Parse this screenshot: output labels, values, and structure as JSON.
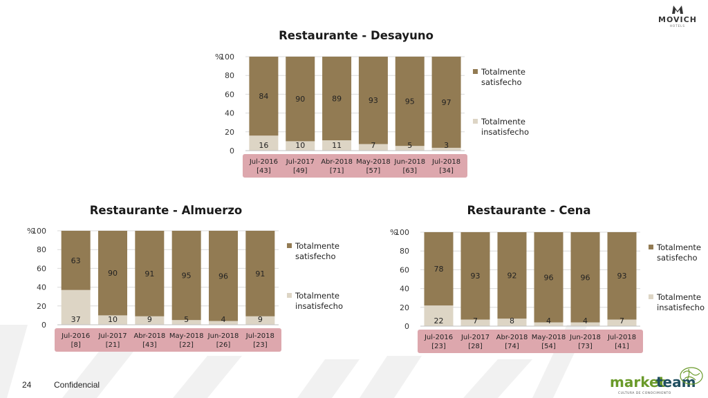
{
  "brand": {
    "name": "MOVICH",
    "sub": "HOTELS"
  },
  "footer": {
    "page": "24",
    "label": "Confidencial"
  },
  "partner": {
    "name_a": "market",
    "name_b": "team",
    "tagline": "CULTURA DE CONOCIMIENTO"
  },
  "colors": {
    "satisfied": "#927b53",
    "unsatisfied": "#ddd5c5",
    "xlabel_bg": "#dda7ad",
    "grid": "#d9d9d9"
  },
  "chart_data": [
    {
      "type": "bar",
      "stacked": true,
      "title": "Restaurante - Desayuno",
      "ylabel": "%",
      "ylim": [
        0,
        100
      ],
      "yticks": [
        0,
        20,
        40,
        60,
        80,
        100
      ],
      "categories": [
        "Jul-2016",
        "Jul-2017",
        "Abr-2018",
        "May-2018",
        "Jun-2018",
        "Jul-2018"
      ],
      "sample_sizes": [
        "[43]",
        "[49]",
        "[71]",
        "[57]",
        "[63]",
        "[34]"
      ],
      "series": [
        {
          "name": "Totalmente insatisfecho",
          "values": [
            16,
            10,
            11,
            7,
            5,
            3
          ]
        },
        {
          "name": "Totalmente satisfecho",
          "values": [
            84,
            90,
            89,
            93,
            95,
            97
          ]
        }
      ],
      "legend": [
        {
          "line1": "Totalmente",
          "line2": "satisfecho"
        },
        {
          "line1": "Totalmente",
          "line2": "insatisfecho"
        }
      ]
    },
    {
      "type": "bar",
      "stacked": true,
      "title": "Restaurante - Almuerzo",
      "ylabel": "%",
      "ylim": [
        0,
        100
      ],
      "yticks": [
        0,
        20,
        40,
        60,
        80,
        100
      ],
      "categories": [
        "Jul-2016",
        "Jul-2017",
        "Abr-2018",
        "May-2018",
        "Jun-2018",
        "Jul-2018"
      ],
      "sample_sizes": [
        "[8]",
        "[21]",
        "[43]",
        "[22]",
        "[26]",
        "[23]"
      ],
      "series": [
        {
          "name": "Totalmente insatisfecho",
          "values": [
            37,
            10,
            9,
            5,
            4,
            9
          ]
        },
        {
          "name": "Totalmente satisfecho",
          "values": [
            63,
            90,
            91,
            95,
            96,
            91
          ]
        }
      ],
      "legend": [
        {
          "line1": "Totalmente",
          "line2": "satisfecho"
        },
        {
          "line1": "Totalmente",
          "line2": "insatisfecho"
        }
      ]
    },
    {
      "type": "bar",
      "stacked": true,
      "title": "Restaurante - Cena",
      "ylabel": "%",
      "ylim": [
        0,
        100
      ],
      "yticks": [
        0,
        20,
        40,
        60,
        80,
        100
      ],
      "categories": [
        "Jul-2016",
        "Jul-2017",
        "Abr-2018",
        "May-2018",
        "Jun-2018",
        "Jul-2018"
      ],
      "sample_sizes": [
        "[23]",
        "[28]",
        "[74]",
        "[54]",
        "[73]",
        "[41]"
      ],
      "series": [
        {
          "name": "Totalmente insatisfecho",
          "values": [
            22,
            7,
            8,
            4,
            4,
            7
          ]
        },
        {
          "name": "Totalmente satisfecho",
          "values": [
            78,
            93,
            92,
            96,
            96,
            93
          ]
        }
      ],
      "legend": [
        {
          "line1": "Totalmente",
          "line2": "satisfecho"
        },
        {
          "line1": "Totalmente",
          "line2": "insatisfecho"
        }
      ]
    }
  ]
}
